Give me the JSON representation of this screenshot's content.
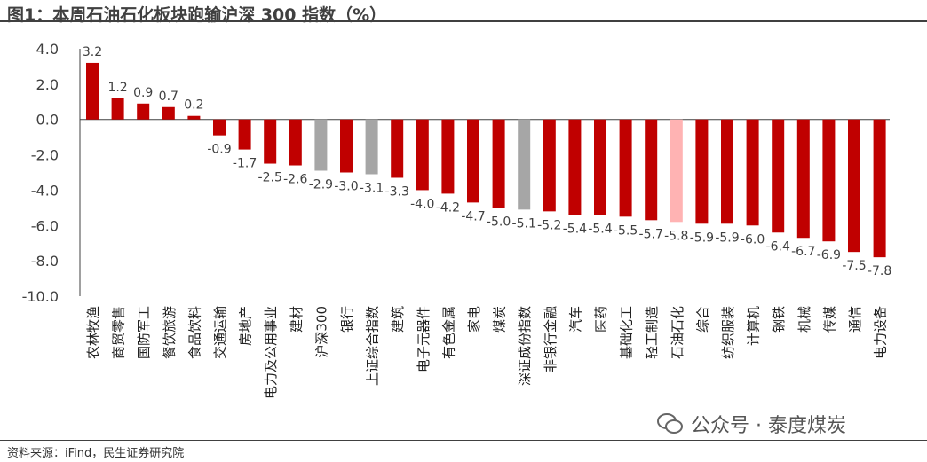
{
  "title": "图1：本周石油石化板块跑输沪深 300 指数（%）",
  "source": "资料来源：iFind，民生证券研究院",
  "watermark": "公众号 · 泰度煤炭",
  "colors": {
    "default": "#C00000",
    "index": "#A6A6A6",
    "highlight": "#FFB3B3"
  },
  "chart_data": {
    "type": "bar",
    "title": "本周石油石化板块跑输沪深 300 指数（%）",
    "ylim": [
      -10,
      4
    ],
    "yticks": [
      4,
      2,
      0,
      -2,
      -4,
      -6,
      -8,
      -10
    ],
    "categories": [
      "农林牧渔",
      "商贸零售",
      "国防军工",
      "餐饮旅游",
      "食品饮料",
      "交通运输",
      "房地产",
      "电力及公用事业",
      "建材",
      "沪深300",
      "银行",
      "上证综合指数",
      "建筑",
      "电子元器件",
      "有色金属",
      "家电",
      "煤炭",
      "深证成份指数",
      "非银行金融",
      "汽车",
      "医药",
      "基础化工",
      "轻工制造",
      "石油石化",
      "综合",
      "纺织服装",
      "计算机",
      "钢铁",
      "机械",
      "传媒",
      "通信",
      "电力设备"
    ],
    "values": [
      3.2,
      1.2,
      0.9,
      0.7,
      0.2,
      -0.9,
      -1.7,
      -2.5,
      -2.6,
      -2.9,
      -3.0,
      -3.1,
      -3.3,
      -4.0,
      -4.2,
      -4.7,
      -5.0,
      -5.1,
      -5.2,
      -5.4,
      -5.4,
      -5.5,
      -5.7,
      -5.8,
      -5.9,
      -5.9,
      -6.0,
      -6.4,
      -6.7,
      -6.9,
      -7.5,
      -7.8
    ],
    "bar_types": [
      "d",
      "d",
      "d",
      "d",
      "d",
      "d",
      "d",
      "d",
      "d",
      "i",
      "d",
      "i",
      "d",
      "d",
      "d",
      "d",
      "d",
      "i",
      "d",
      "d",
      "d",
      "d",
      "d",
      "h",
      "d",
      "d",
      "d",
      "d",
      "d",
      "d",
      "d",
      "d"
    ]
  }
}
